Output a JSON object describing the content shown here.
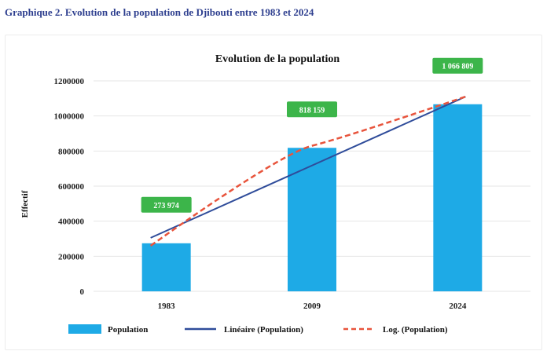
{
  "caption": "Graphique 2. Evolution de la population de Djibouti entre 1983 et 2024",
  "colors": {
    "bar": "#1eaae6",
    "linear": "#2f4c9a",
    "log": "#e8543c",
    "label_bg": "#3cb54a",
    "grid": "#e6e6e6"
  },
  "chart_data": {
    "type": "bar",
    "title": "Evolution de la population",
    "ylabel": "Effectif",
    "xlabel": "",
    "ylim": [
      0,
      1200000
    ],
    "yticks": [
      0,
      200000,
      400000,
      600000,
      800000,
      1000000,
      1200000
    ],
    "ytick_labels": [
      "0",
      "200000",
      "400000",
      "600000",
      "800000",
      "1000000",
      "1200000"
    ],
    "categories": [
      "1983",
      "2009",
      "2024"
    ],
    "series": [
      {
        "name": "Population",
        "type": "bar",
        "values": [
          273974,
          818159,
          1066809
        ],
        "data_labels": [
          "273 974",
          "818 159",
          "1 066 809"
        ]
      },
      {
        "name": "Linéaire (Population)",
        "type": "trendline-linear",
        "values": [
          305000,
          720000,
          1110000
        ]
      },
      {
        "name": "Log. (Population)",
        "type": "trendline-log",
        "values": [
          260000,
          830000,
          1110000
        ]
      }
    ],
    "legend_position": "bottom",
    "grid": true
  }
}
